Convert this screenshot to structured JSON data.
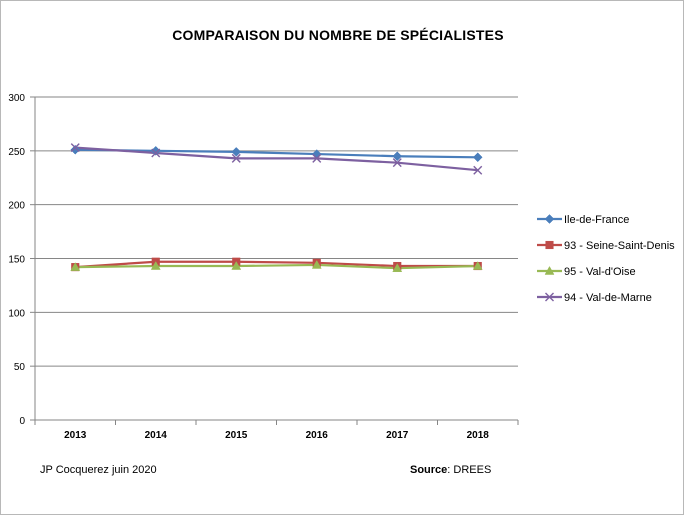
{
  "chart_data": {
    "type": "line",
    "title": "COMPARAISON DU NOMBRE DE SPÉCIALISTES",
    "xlabel": "",
    "ylabel": "",
    "categories": [
      "2013",
      "2014",
      "2015",
      "2016",
      "2017",
      "2018"
    ],
    "ylim": [
      0,
      300
    ],
    "yticks": [
      0,
      50,
      100,
      150,
      200,
      250,
      300
    ],
    "grid": true,
    "legend_position": "right",
    "series": [
      {
        "name": "Ile-de-France",
        "color": "#4a7ebb",
        "marker": "diamond",
        "values": [
          251,
          250,
          249,
          247,
          245,
          244
        ]
      },
      {
        "name": "93 - Seine-Saint-Denis",
        "color": "#be4b48",
        "marker": "square",
        "values": [
          142,
          147,
          147,
          146,
          143,
          143
        ]
      },
      {
        "name": "95 - Val-d'Oise",
        "color": "#98b954",
        "marker": "triangle",
        "values": [
          142,
          143,
          143,
          144,
          141,
          143
        ]
      },
      {
        "name": "94 - Val-de-Marne",
        "color": "#7d60a0",
        "marker": "x",
        "values": [
          253,
          248,
          243,
          243,
          239,
          232
        ]
      }
    ]
  },
  "footer": {
    "author": "JP Cocquerez  juin 2020",
    "source_label": "Source",
    "source_value": ": DREES"
  }
}
